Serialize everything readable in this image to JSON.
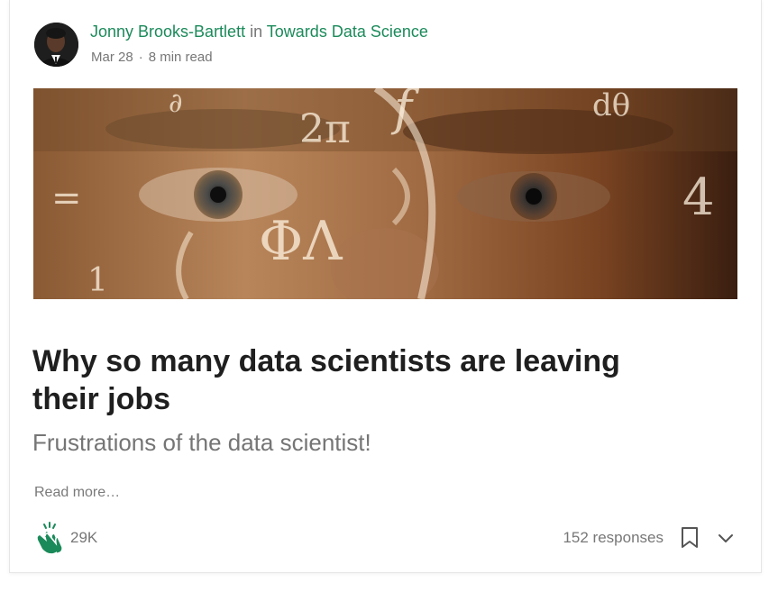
{
  "post": {
    "author": "Jonny Brooks-Bartlett",
    "in_word": "in",
    "publication": "Towards Data Science",
    "date": "Mar 28",
    "separator": "·",
    "read_time": "8 min read",
    "title": "Why so many data scientists are leaving their jobs",
    "subtitle": "Frustrations of the data scientist!",
    "read_more": "Read more…",
    "claps": "29K",
    "responses": "152 responses"
  },
  "icons": {
    "clap": "clap-hands-icon",
    "bookmark": "bookmark-icon",
    "chevron": "chevron-down-icon"
  },
  "colors": {
    "accent": "#1b8a5a",
    "meta": "#777777",
    "title": "#1f1f1f",
    "subtitle": "#757575"
  }
}
